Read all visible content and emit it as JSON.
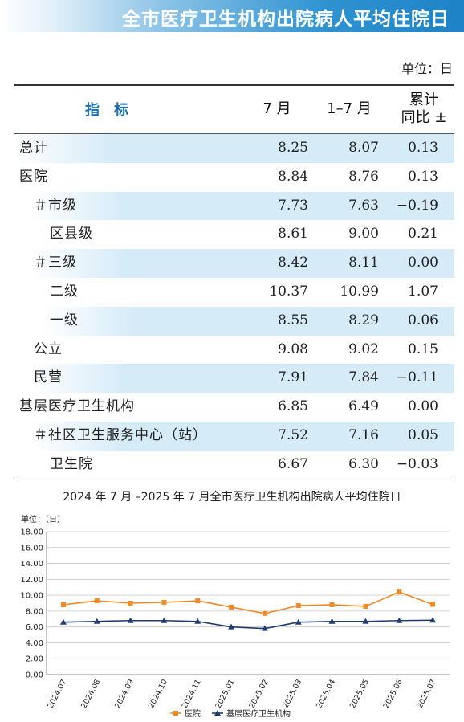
{
  "header": {
    "title": "全市医疗卫生机构出院病人平均住院日"
  },
  "unit_label": "单位：日",
  "table": {
    "columns": {
      "indicator": "指　标",
      "month": "7 月",
      "ytd": "1–7 月",
      "yoy_line1": "累计",
      "yoy_line2": "同比 ±"
    },
    "rows": [
      {
        "label": "总计",
        "month": "8.25",
        "ytd": "8.07",
        "yoy": "0.13"
      },
      {
        "label": "医院",
        "month": "8.84",
        "ytd": "8.76",
        "yoy": "0.13"
      },
      {
        "label": "＃市级",
        "month": "7.73",
        "ytd": "7.63",
        "yoy": "−0.19"
      },
      {
        "label": "区县级",
        "month": "8.61",
        "ytd": "9.00",
        "yoy": "0.21"
      },
      {
        "label": "＃三级",
        "month": "8.42",
        "ytd": "8.11",
        "yoy": "0.00"
      },
      {
        "label": "二级",
        "month": "10.37",
        "ytd": "10.99",
        "yoy": "1.07"
      },
      {
        "label": "一级",
        "month": "8.55",
        "ytd": "8.29",
        "yoy": "0.06"
      },
      {
        "label": "公立",
        "month": "9.08",
        "ytd": "9.02",
        "yoy": "0.15"
      },
      {
        "label": "民营",
        "month": "7.91",
        "ytd": "7.84",
        "yoy": "−0.11"
      },
      {
        "label": "基层医疗卫生机构",
        "month": "6.85",
        "ytd": "6.49",
        "yoy": "0.00"
      },
      {
        "label": "＃社区卫生服务中心（站）",
        "month": "7.52",
        "ytd": "7.16",
        "yoy": "0.05"
      },
      {
        "label": "卫生院",
        "month": "6.67",
        "ytd": "6.30",
        "yoy": "−0.03"
      }
    ]
  },
  "chart_data": {
    "type": "line",
    "title": "2024 年 7 月 –2025 年 7 月全市医疗卫生机构出院病人平均住院日",
    "ylabel": "单位：（日）",
    "ylim": [
      0,
      18
    ],
    "ytick_step": 2,
    "yticks": [
      "0.00",
      "2.00",
      "4.00",
      "6.00",
      "8.00",
      "10.00",
      "12.00",
      "14.00",
      "16.00",
      "18.00"
    ],
    "categories": [
      "2024.07",
      "2024.08",
      "2024.09",
      "2024.10",
      "2024.11",
      "2025.01",
      "2025.02",
      "2025.03",
      "2025.04",
      "2025.05",
      "2025.06",
      "2025.07"
    ],
    "series": [
      {
        "name": "医院",
        "color": "#f08a24",
        "marker": "square",
        "values": [
          8.8,
          9.3,
          9.0,
          9.1,
          9.3,
          8.5,
          7.7,
          8.7,
          8.8,
          8.6,
          10.4,
          8.84
        ]
      },
      {
        "name": "基层医疗卫生机构",
        "color": "#1f3b70",
        "marker": "triangle",
        "values": [
          6.6,
          6.7,
          6.8,
          6.8,
          6.7,
          6.0,
          5.8,
          6.6,
          6.7,
          6.7,
          6.8,
          6.85
        ]
      }
    ],
    "grid": true,
    "legend": "bottom-center"
  }
}
